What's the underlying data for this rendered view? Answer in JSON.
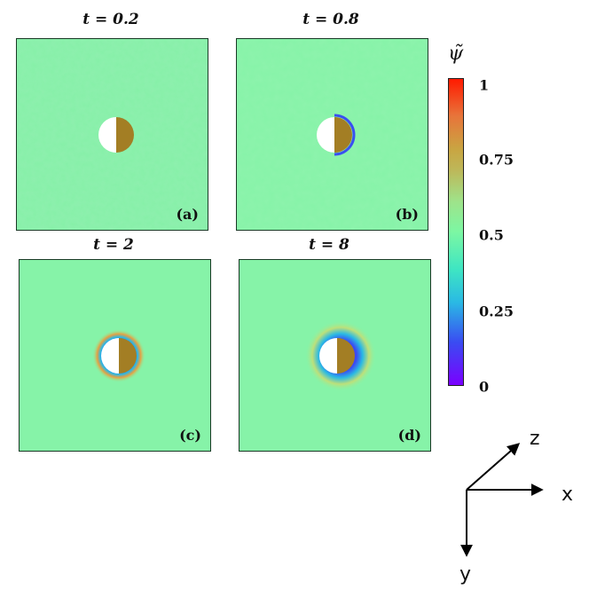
{
  "panels": [
    {
      "title": "t = 0.2",
      "label": "(a)"
    },
    {
      "title": "t = 0.8",
      "label": "(b)"
    },
    {
      "title": "t = 2",
      "label": "(c)"
    },
    {
      "title": "t = 8",
      "label": "(d)"
    }
  ],
  "colorbar": {
    "title": "ψ̃",
    "ticks": [
      "1",
      "0.75",
      "0.5",
      "0.25",
      "0"
    ]
  },
  "axes": {
    "x": "x",
    "y": "y",
    "z": "z"
  },
  "colors": {
    "background": "#82f3a6",
    "particle": "#a37e24",
    "void": "#ffffff"
  }
}
